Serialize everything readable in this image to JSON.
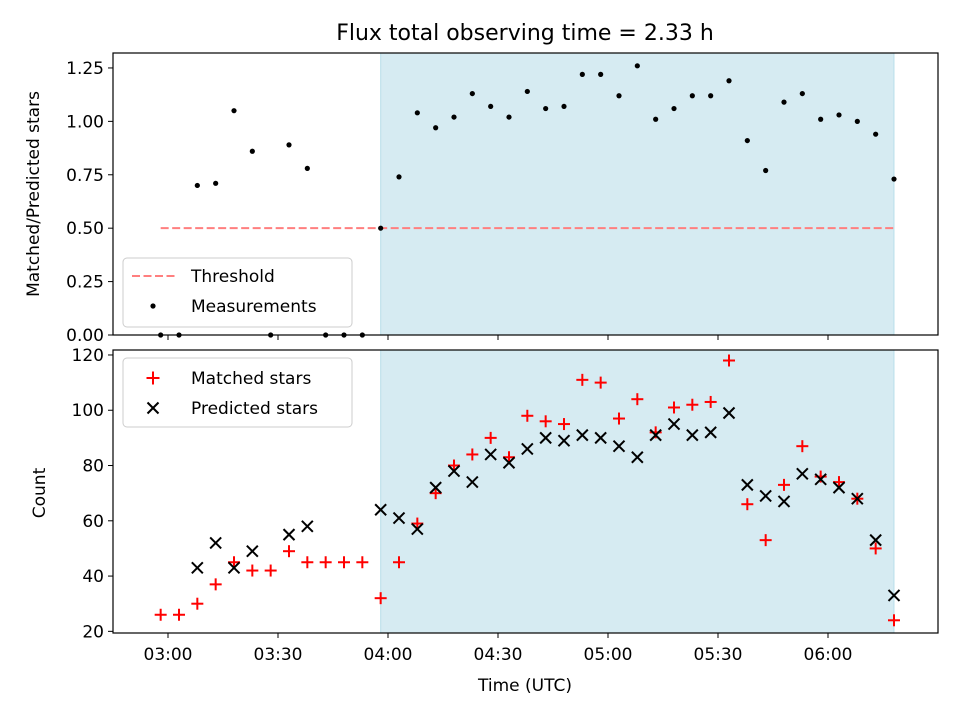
{
  "chart_data": [
    {
      "type": "scatter",
      "title": "Flux total observing time = 2.33 h",
      "xlabel": "",
      "ylabel": "Matched/Predicted stars",
      "ylim": [
        0,
        1.32
      ],
      "yticks": [
        "0.00",
        "0.25",
        "0.50",
        "0.75",
        "1.00",
        "1.25"
      ],
      "x_axis": "time (UTC)",
      "xlim": [
        "02:45",
        "06:30"
      ],
      "shaded_interval": [
        "03:58",
        "06:18"
      ],
      "legend": {
        "placement": "lower-left",
        "entries": [
          "Threshold",
          "Measurements"
        ]
      },
      "series": [
        {
          "name": "Threshold",
          "style": "dashed-line",
          "color": "#ff7f7f",
          "points": [
            [
              "02:58",
              0.5
            ],
            [
              "06:18",
              0.5
            ]
          ]
        },
        {
          "name": "Measurements",
          "style": "dot",
          "color": "#000000",
          "points": [
            [
              "02:58",
              0.0
            ],
            [
              "03:03",
              0.0
            ],
            [
              "03:08",
              0.7
            ],
            [
              "03:13",
              0.71
            ],
            [
              "03:18",
              1.05
            ],
            [
              "03:23",
              0.86
            ],
            [
              "03:28",
              0.0
            ],
            [
              "03:33",
              0.89
            ],
            [
              "03:38",
              0.78
            ],
            [
              "03:43",
              0.0
            ],
            [
              "03:48",
              0.0
            ],
            [
              "03:53",
              0.0
            ],
            [
              "03:58",
              0.5
            ],
            [
              "04:03",
              0.74
            ],
            [
              "04:08",
              1.04
            ],
            [
              "04:13",
              0.97
            ],
            [
              "04:18",
              1.02
            ],
            [
              "04:23",
              1.13
            ],
            [
              "04:28",
              1.07
            ],
            [
              "04:33",
              1.02
            ],
            [
              "04:38",
              1.14
            ],
            [
              "04:43",
              1.06
            ],
            [
              "04:48",
              1.07
            ],
            [
              "04:53",
              1.22
            ],
            [
              "04:58",
              1.22
            ],
            [
              "05:03",
              1.12
            ],
            [
              "05:08",
              1.26
            ],
            [
              "05:13",
              1.01
            ],
            [
              "05:18",
              1.06
            ],
            [
              "05:23",
              1.12
            ],
            [
              "05:28",
              1.12
            ],
            [
              "05:33",
              1.19
            ],
            [
              "05:38",
              0.91
            ],
            [
              "05:43",
              0.77
            ],
            [
              "05:48",
              1.09
            ],
            [
              "05:53",
              1.13
            ],
            [
              "05:58",
              1.01
            ],
            [
              "06:03",
              1.03
            ],
            [
              "06:08",
              1.0
            ],
            [
              "06:13",
              0.94
            ],
            [
              "06:18",
              0.73
            ]
          ]
        }
      ]
    },
    {
      "type": "scatter",
      "title": "",
      "xlabel": "Time (UTC)",
      "ylabel": "Count",
      "ylim": [
        19.4,
        121.8
      ],
      "yticks": [
        "20",
        "40",
        "60",
        "80",
        "100",
        "120"
      ],
      "x_axis": "time (UTC)",
      "xlim": [
        "02:45",
        "06:30"
      ],
      "xticks": [
        "03:00",
        "03:30",
        "04:00",
        "04:30",
        "05:00",
        "05:30",
        "06:00"
      ],
      "shaded_interval": [
        "03:58",
        "06:18"
      ],
      "legend": {
        "placement": "upper-left",
        "entries": [
          "Matched stars",
          "Predicted stars"
        ]
      },
      "series": [
        {
          "name": "Matched stars",
          "marker": "plus",
          "color": "#ff0000",
          "points": [
            [
              "02:58",
              26
            ],
            [
              "03:03",
              26
            ],
            [
              "03:08",
              30
            ],
            [
              "03:13",
              37
            ],
            [
              "03:18",
              45
            ],
            [
              "03:23",
              42
            ],
            [
              "03:28",
              42
            ],
            [
              "03:33",
              49
            ],
            [
              "03:38",
              45
            ],
            [
              "03:43",
              45
            ],
            [
              "03:48",
              45
            ],
            [
              "03:53",
              45
            ],
            [
              "03:58",
              32
            ],
            [
              "04:03",
              45
            ],
            [
              "04:08",
              59
            ],
            [
              "04:13",
              70
            ],
            [
              "04:18",
              80
            ],
            [
              "04:23",
              84
            ],
            [
              "04:28",
              90
            ],
            [
              "04:33",
              83
            ],
            [
              "04:38",
              98
            ],
            [
              "04:43",
              96
            ],
            [
              "04:48",
              95
            ],
            [
              "04:53",
              111
            ],
            [
              "04:58",
              110
            ],
            [
              "05:03",
              97
            ],
            [
              "05:08",
              104
            ],
            [
              "05:13",
              92
            ],
            [
              "05:18",
              101
            ],
            [
              "05:23",
              102
            ],
            [
              "05:28",
              103
            ],
            [
              "05:33",
              118
            ],
            [
              "05:38",
              66
            ],
            [
              "05:43",
              53
            ],
            [
              "05:48",
              73
            ],
            [
              "05:53",
              87
            ],
            [
              "05:58",
              76
            ],
            [
              "06:03",
              74
            ],
            [
              "06:08",
              68
            ],
            [
              "06:13",
              50
            ],
            [
              "06:18",
              24
            ]
          ]
        },
        {
          "name": "Predicted stars",
          "marker": "x",
          "color": "#000000",
          "points": [
            [
              "03:08",
              43
            ],
            [
              "03:13",
              52
            ],
            [
              "03:18",
              43
            ],
            [
              "03:23",
              49
            ],
            [
              "03:33",
              55
            ],
            [
              "03:38",
              58
            ],
            [
              "03:58",
              64
            ],
            [
              "04:03",
              61
            ],
            [
              "04:08",
              57
            ],
            [
              "04:13",
              72
            ],
            [
              "04:18",
              78
            ],
            [
              "04:23",
              74
            ],
            [
              "04:28",
              84
            ],
            [
              "04:33",
              81
            ],
            [
              "04:38",
              86
            ],
            [
              "04:43",
              90
            ],
            [
              "04:48",
              89
            ],
            [
              "04:53",
              91
            ],
            [
              "04:58",
              90
            ],
            [
              "05:03",
              87
            ],
            [
              "05:08",
              83
            ],
            [
              "05:13",
              91
            ],
            [
              "05:18",
              95
            ],
            [
              "05:23",
              91
            ],
            [
              "05:28",
              92
            ],
            [
              "05:33",
              99
            ],
            [
              "05:38",
              73
            ],
            [
              "05:43",
              69
            ],
            [
              "05:48",
              67
            ],
            [
              "05:53",
              77
            ],
            [
              "05:58",
              75
            ],
            [
              "06:03",
              72
            ],
            [
              "06:08",
              68
            ],
            [
              "06:13",
              53
            ],
            [
              "06:18",
              33
            ]
          ]
        }
      ]
    }
  ],
  "colors": {
    "shade": "#add8e6",
    "threshold": "#ff7f7f",
    "matched": "#ff0000",
    "predicted": "#000000",
    "measurements": "#000000"
  }
}
